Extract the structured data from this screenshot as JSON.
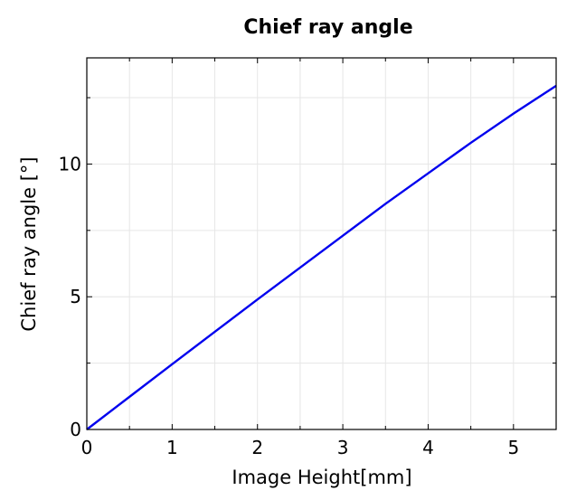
{
  "chart_data": {
    "type": "line",
    "title": "Chief ray angle",
    "xlabel": "Image Height[mm]",
    "ylabel": "Chief ray angle [°]",
    "xlim": [
      0,
      5.5
    ],
    "ylim": [
      0,
      14
    ],
    "x_ticks": [
      0,
      1,
      2,
      3,
      4,
      5
    ],
    "y_ticks": [
      0,
      5,
      10
    ],
    "grid": true,
    "series": [
      {
        "color": "#0000ee",
        "x": [
          0,
          0.5,
          1,
          1.5,
          2,
          2.5,
          3,
          3.5,
          4,
          4.5,
          5,
          5.5
        ],
        "y": [
          0,
          1.23,
          2.46,
          3.68,
          4.9,
          6.1,
          7.3,
          8.5,
          9.65,
          10.8,
          11.9,
          12.95
        ]
      }
    ]
  }
}
